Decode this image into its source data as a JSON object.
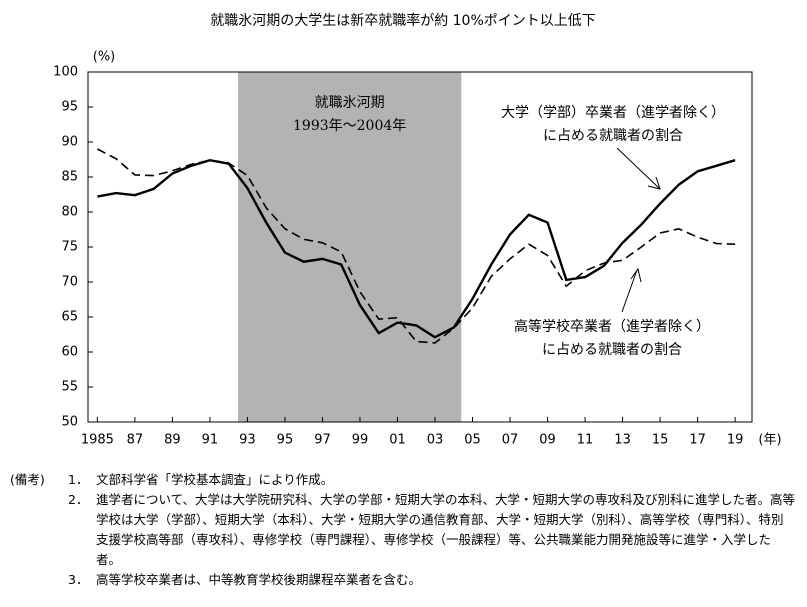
{
  "chart_data": {
    "type": "line",
    "title": "就職氷河期の大学生は新卒就職率が約 10%ポイント以上低下",
    "y_label": "(%)",
    "x_label": "(年)",
    "x": [
      1985,
      1986,
      1987,
      1988,
      1989,
      1990,
      1991,
      1992,
      1993,
      1994,
      1995,
      1996,
      1997,
      1998,
      1999,
      2000,
      2001,
      2002,
      2003,
      2004,
      2005,
      2006,
      2007,
      2008,
      2009,
      2010,
      2011,
      2012,
      2013,
      2014,
      2015,
      2016,
      2017,
      2018,
      2019
    ],
    "xlim": [
      1984.5,
      2019.9
    ],
    "xticks": [
      1985,
      {
        "value": 1987,
        "label": "87"
      },
      {
        "value": 1989,
        "label": "89"
      },
      {
        "value": 1991,
        "label": "91"
      },
      {
        "value": 1993,
        "label": "93"
      },
      {
        "value": 1995,
        "label": "95"
      },
      {
        "value": 1997,
        "label": "97"
      },
      {
        "value": 1999,
        "label": "99"
      },
      {
        "value": 2001,
        "label": "01"
      },
      {
        "value": 2003,
        "label": "03"
      },
      {
        "value": 2005,
        "label": "05"
      },
      {
        "value": 2007,
        "label": "07"
      },
      {
        "value": 2009,
        "label": "09"
      },
      {
        "value": 2011,
        "label": "11"
      },
      {
        "value": 2013,
        "label": "13"
      },
      {
        "value": 2015,
        "label": "15"
      },
      {
        "value": 2017,
        "label": "17"
      },
      {
        "value": 2019,
        "label": "19"
      }
    ],
    "ylim": [
      50,
      100
    ],
    "yticks": [
      50,
      55,
      60,
      65,
      70,
      75,
      80,
      85,
      90,
      95,
      100
    ],
    "series": [
      {
        "name": "大学（学部）卒業者（進学者除く）に占める就職者の割合",
        "color": "#000000",
        "style": "solid",
        "values": [
          82.2,
          82.7,
          82.4,
          83.3,
          85.5,
          86.6,
          87.4,
          86.9,
          83.4,
          78.5,
          74.2,
          72.9,
          73.3,
          72.5,
          66.7,
          62.7,
          64.2,
          63.8,
          62.1,
          63.5,
          67.6,
          72.5,
          76.8,
          79.6,
          78.5,
          70.3,
          70.7,
          72.3,
          75.6,
          78.2,
          81.2,
          83.9,
          85.8,
          86.6,
          87.4
        ]
      },
      {
        "name": "高等学校卒業者（進学者除く）に占める就職者の割合",
        "color": "#000000",
        "style": "dashed",
        "values": [
          89.0,
          87.6,
          85.3,
          85.2,
          85.9,
          86.8,
          87.4,
          87.0,
          85.2,
          80.6,
          77.6,
          76.1,
          75.6,
          74.3,
          68.6,
          64.7,
          64.9,
          61.5,
          61.3,
          63.4,
          66.3,
          70.8,
          73.3,
          75.4,
          73.8,
          69.4,
          71.6,
          72.7,
          73.1,
          75.0,
          77.0,
          77.6,
          76.4,
          75.5,
          75.4
        ]
      }
    ],
    "shade": {
      "range": [
        1992.5,
        2004.4
      ],
      "color": "#b3b3b3",
      "labels": [
        "就職氷河期",
        "1993年～2004年"
      ]
    },
    "annotations": [
      {
        "lines": [
          "大学（学部）卒業者（進学者除く）",
          "に占める就職者の割合"
        ]
      },
      {
        "lines": [
          "高等学校卒業者（進学者除く）",
          "に占める就職者の割合"
        ]
      }
    ]
  },
  "notes": {
    "heading": "(備考)",
    "items": [
      {
        "number": "1．",
        "text": "文部科学省「学校基本調査」により作成。"
      },
      {
        "number": "2．",
        "text": "進学者について、大学は大学院研究科、大学の学部・短期大学の本科、大学・短期大学の専攻科及び別科に進学した者。高等学校は大学（学部）、短期大学（本科）、大学・短期大学の通信教育部、大学・短期大学（別科）、高等学校（専門科）、特別支援学校高等部（専攻科）、専修学校（専門課程）、専修学校（一般課程）等、公共職業能力開発施設等に進学・入学した者。"
      },
      {
        "number": "3．",
        "text": "高等学校卒業者は、中等教育学校後期課程卒業者を含む。"
      }
    ]
  }
}
